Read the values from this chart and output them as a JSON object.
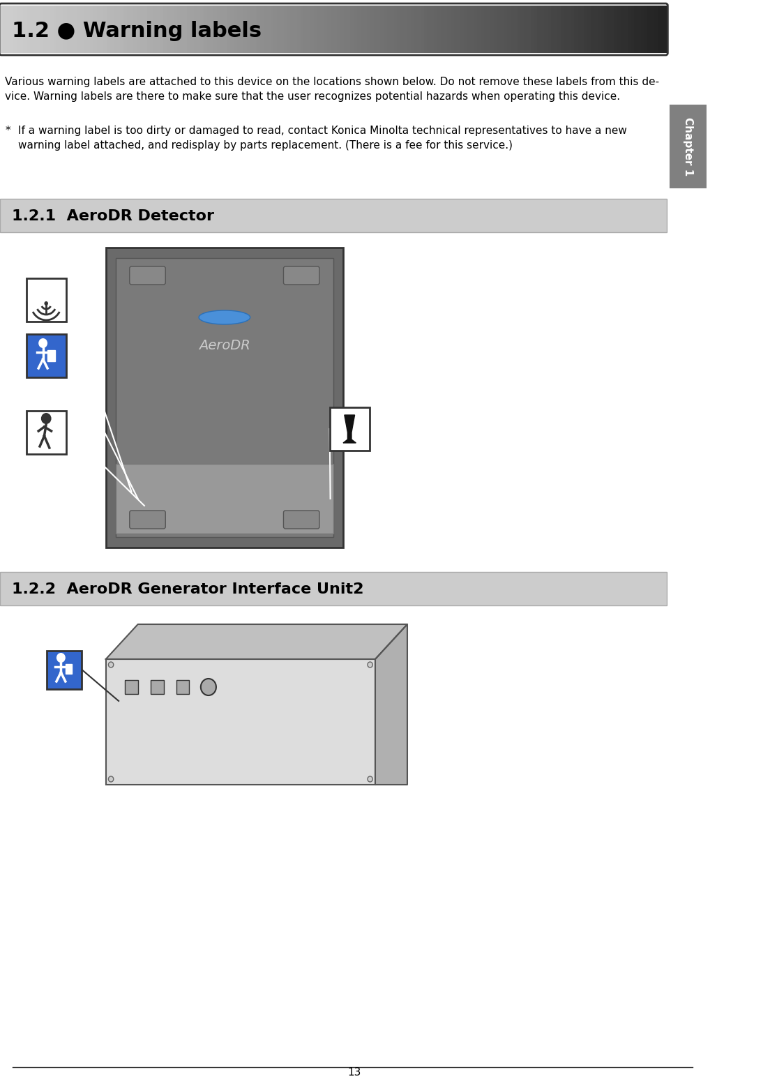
{
  "page_bg": "#ffffff",
  "title_text": "1.2 ● Warning labels",
  "title_bg_start": "#ffffff",
  "title_bg_end": "#cccccc",
  "title_border": "#333333",
  "chapter_tab_color": "#808080",
  "chapter_tab_text": "Chapter 1",
  "body_text_1": "Various warning labels are attached to this device on the locations shown below. Do not remove these labels from this de-\nvice. Warning labels are there to make sure that the user recognizes potential hazards when operating this device.",
  "bullet_star": "*",
  "body_text_2": "If a warning label is too dirty or damaged to read, contact Konica Minolta technical representatives to have a new\nwarning label attached, and redisplay by parts replacement. (There is a fee for this service.)",
  "section1_text": "1.2.1  AeroDR Detector",
  "section2_text": "1.2.2  AeroDR Generator Interface Unit2",
  "section_bg": "#cccccc",
  "section_border": "#aaaaaa",
  "page_number": "13",
  "bottom_line_color": "#333333",
  "detector_image_bg": "#888888",
  "unit_image_bg": "#dddddd",
  "font_size_title": 22,
  "font_size_body": 11,
  "font_size_section": 16,
  "font_size_page": 11,
  "text_color": "#000000",
  "section_text_color": "#000000"
}
